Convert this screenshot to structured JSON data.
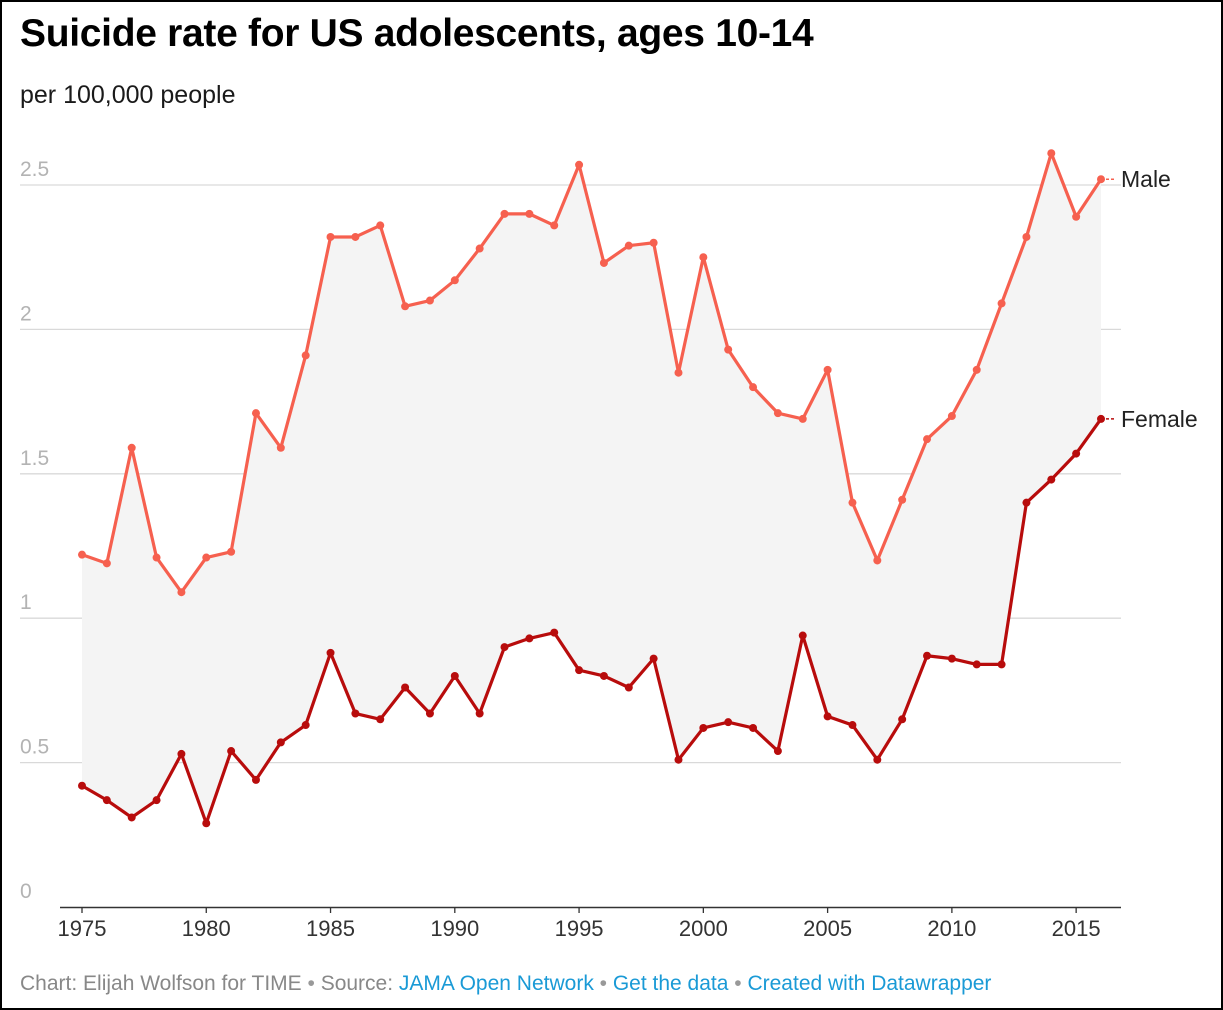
{
  "title": "Suicide rate for US adolescents, ages 10-14",
  "subtitle": "per 100,000 people",
  "footer": {
    "credit": "Chart: Elijah Wolfson for TIME",
    "sep": " • ",
    "source_label": "Source: ",
    "source_link": "JAMA Open Network",
    "data_link": "Get the data",
    "created_link": "Created with Datawrapper"
  },
  "colors": {
    "male": "#f6604f",
    "female": "#b80c0c",
    "band": "#f4f4f4",
    "grid": "#d9d9d9",
    "tick_text": "#b3b3b3",
    "x_tick_text": "#333333"
  },
  "chart_data": {
    "type": "line",
    "title": "Suicide rate for US adolescents, ages 10-14",
    "subtitle": "per 100,000 people",
    "x": [
      1975,
      1976,
      1977,
      1978,
      1979,
      1980,
      1981,
      1982,
      1983,
      1984,
      1985,
      1986,
      1987,
      1988,
      1989,
      1990,
      1991,
      1992,
      1993,
      1994,
      1995,
      1996,
      1997,
      1998,
      1999,
      2000,
      2001,
      2002,
      2003,
      2004,
      2005,
      2006,
      2007,
      2008,
      2009,
      2010,
      2011,
      2012,
      2013,
      2014,
      2015,
      2016
    ],
    "series": [
      {
        "name": "Male",
        "color": "#f6604f",
        "values": [
          1.22,
          1.19,
          1.59,
          1.21,
          1.09,
          1.21,
          1.23,
          1.71,
          1.59,
          1.91,
          2.32,
          2.32,
          2.36,
          2.08,
          2.1,
          2.17,
          2.28,
          2.4,
          2.4,
          2.36,
          2.57,
          2.23,
          2.29,
          2.3,
          1.85,
          2.25,
          1.93,
          1.8,
          1.71,
          1.69,
          1.86,
          1.4,
          1.2,
          1.41,
          1.62,
          1.7,
          1.86,
          2.09,
          2.32,
          2.61,
          2.39,
          2.52
        ]
      },
      {
        "name": "Female",
        "color": "#b80c0c",
        "values": [
          0.42,
          0.37,
          0.31,
          0.37,
          0.53,
          0.29,
          0.54,
          0.44,
          0.57,
          0.63,
          0.88,
          0.67,
          0.65,
          0.76,
          0.67,
          0.8,
          0.67,
          0.9,
          0.93,
          0.95,
          0.82,
          0.8,
          0.76,
          0.86,
          0.51,
          0.62,
          0.64,
          0.62,
          0.54,
          0.94,
          0.66,
          0.63,
          0.51,
          0.65,
          0.87,
          0.86,
          0.84,
          0.84,
          1.4,
          1.48,
          1.57,
          1.69
        ]
      }
    ],
    "yticks": [
      0,
      0.5,
      1,
      1.5,
      2,
      2.5
    ],
    "ytick_labels": [
      "0",
      "0.5",
      "1",
      "1.5",
      "2",
      "2.5"
    ],
    "xticks": [
      1975,
      1980,
      1985,
      1990,
      1995,
      2000,
      2005,
      2010,
      2015
    ],
    "xtick_labels": [
      "1975",
      "1980",
      "1985",
      "1990",
      "1995",
      "2000",
      "2005",
      "2010",
      "2015"
    ],
    "ylim": [
      0,
      2.75
    ],
    "xlim": [
      1975,
      2016
    ],
    "grid": true,
    "shaded_range_between_series": true,
    "legend": "inline-right"
  }
}
